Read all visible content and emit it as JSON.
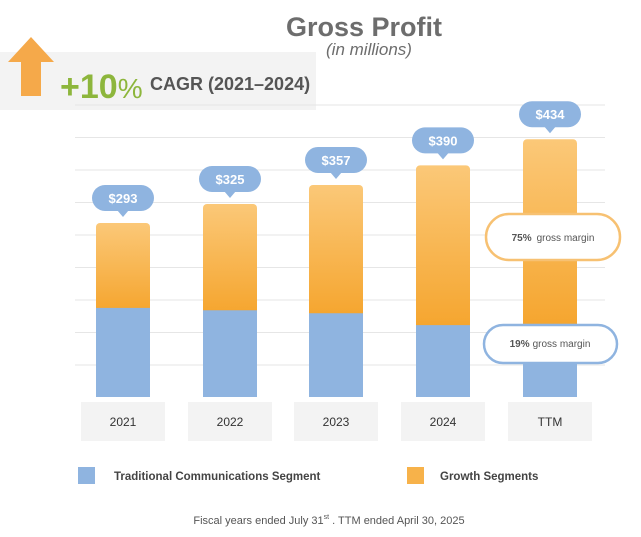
{
  "chart_data": {
    "type": "bar",
    "stacked": true,
    "title": "Gross Profit",
    "subtitle": "(in millions)",
    "categories": [
      "2021",
      "2022",
      "2023",
      "2024",
      "TTM"
    ],
    "totals": [
      "$293",
      "$325",
      "$357",
      "$390",
      "$434"
    ],
    "total_values": [
      293,
      325,
      357,
      390,
      434
    ],
    "series": [
      {
        "name": "Traditional Communications Segment",
        "values": [
          150,
          146,
          141,
          121,
          123
        ],
        "color": "#8fb4e0"
      },
      {
        "name": "Growth Segments",
        "values": [
          143,
          179,
          216,
          269,
          311
        ],
        "color": "#f7b24a"
      }
    ],
    "ylim": [
      0,
      500
    ],
    "grid": true,
    "legend_position": "bottom"
  },
  "cagr": {
    "value": "+10",
    "percent_sign": "%",
    "label": "CAGR (2021–2024)"
  },
  "callouts": {
    "growth": {
      "pct": "75%",
      "text": "gross margin"
    },
    "traditional": {
      "pct": "19%",
      "text": "gross margin"
    }
  },
  "footnote": {
    "part1": "Fiscal years  ended July 31",
    "sup": "st",
    "part2": " .  TTM ended April 30, 2025"
  },
  "colors": {
    "accent": "#8db63c",
    "arrow": "#f5a94a",
    "label_bubble": "#8fb4e0",
    "grid": "#e6e6e6"
  }
}
